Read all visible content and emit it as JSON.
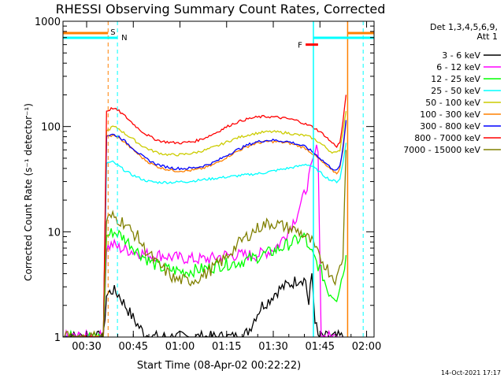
{
  "chart_data": {
    "type": "line",
    "title": "RHESSI Observing Summary Count Rates, Corrected",
    "xlabel": "Start Time (08-Apr-02 00:22:22)",
    "ylabel": "Corrected Count Rate (s⁻¹ detector⁻¹)",
    "yscale": "log",
    "ylim": [
      1,
      1000
    ],
    "xlim_minutes": [
      0,
      100
    ],
    "x_ticks": [
      {
        "t": 7.6,
        "label": "00:30"
      },
      {
        "t": 22.6,
        "label": "00:45"
      },
      {
        "t": 37.6,
        "label": "01:00"
      },
      {
        "t": 52.6,
        "label": "01:15"
      },
      {
        "t": 67.6,
        "label": "01:30"
      },
      {
        "t": 82.6,
        "label": "01:45"
      },
      {
        "t": 97.6,
        "label": "02:00"
      }
    ],
    "y_ticks": [
      {
        "v": 1,
        "label": "1"
      },
      {
        "v": 10,
        "label": "10"
      },
      {
        "v": 100,
        "label": "100"
      },
      {
        "v": 1000,
        "label": "1000"
      }
    ],
    "legend_title": [
      "Det 1,3,4,5,6,9,",
      "Att 1"
    ],
    "legend_placement": "right",
    "series": [
      {
        "name": "3 - 6 keV",
        "color": "#000000",
        "x": [
          0,
          13,
          14,
          16,
          18,
          20,
          22,
          24,
          26,
          28,
          30,
          32,
          34,
          36,
          38,
          40,
          42,
          44,
          46,
          48,
          50,
          52,
          54,
          56,
          58,
          60,
          62,
          64,
          66,
          68,
          70,
          72,
          74,
          76,
          78,
          79,
          80,
          81,
          82,
          83,
          84,
          85,
          85.5,
          86,
          88,
          89,
          90
        ],
        "y": [
          1,
          1,
          2.5,
          2.8,
          2.5,
          2,
          1.6,
          1.3,
          1.1,
          1,
          1,
          1,
          1,
          1,
          1,
          1,
          1,
          1,
          1,
          1,
          1,
          1,
          1,
          1,
          1,
          1.2,
          1.6,
          2,
          2.2,
          2.6,
          2.9,
          3.1,
          3.3,
          3.6,
          3.5,
          2,
          4,
          1.5,
          1,
          1,
          1,
          1,
          1,
          1,
          1,
          1,
          1
        ]
      },
      {
        "name": "6 - 12 keV",
        "color": "#ff00ff",
        "x": [
          0,
          13,
          14,
          16,
          18,
          20,
          22,
          24,
          26,
          28,
          30,
          32,
          34,
          36,
          38,
          40,
          42,
          44,
          46,
          48,
          50,
          52,
          54,
          56,
          58,
          60,
          62,
          64,
          66,
          68,
          70,
          72,
          73,
          74,
          75,
          76,
          77,
          78,
          79,
          80,
          81,
          82,
          83,
          84,
          85,
          86,
          87,
          88,
          89,
          90
        ],
        "y": [
          1,
          1,
          7,
          7.6,
          7,
          6.8,
          6.6,
          6.4,
          6.2,
          6,
          6,
          6,
          5.8,
          5.7,
          5.6,
          5.6,
          5.5,
          5.5,
          5.5,
          5.6,
          5.8,
          6,
          6,
          6,
          6,
          6,
          6,
          6.2,
          6.5,
          7,
          8,
          10,
          11,
          12.5,
          14,
          17,
          20,
          25,
          32,
          42,
          55,
          65,
          1,
          1,
          1,
          1,
          1,
          1,
          1,
          1
        ]
      },
      {
        "name": "12 - 25 keV",
        "color": "#00ff00",
        "x": [
          0,
          13,
          14,
          16,
          18,
          20,
          22,
          24,
          26,
          28,
          30,
          32,
          34,
          36,
          38,
          40,
          42,
          44,
          46,
          48,
          50,
          52,
          54,
          56,
          58,
          60,
          62,
          64,
          66,
          68,
          70,
          72,
          74,
          76,
          78,
          79,
          80,
          81,
          82,
          83,
          84,
          85,
          86,
          88,
          90,
          91
        ],
        "y": [
          1,
          1,
          9,
          10,
          9.5,
          8.5,
          7.5,
          6.5,
          5.8,
          5.2,
          4.8,
          4.5,
          4.4,
          4.3,
          4.2,
          4.2,
          4.3,
          4.4,
          4.5,
          4.6,
          4.8,
          4.9,
          5,
          5.1,
          5.3,
          5.5,
          5.7,
          6,
          6.3,
          6.6,
          7,
          7.5,
          8,
          8.5,
          9,
          6.5,
          6.2,
          5.5,
          4.8,
          4.2,
          3.5,
          2.8,
          2.6,
          2.4,
          4,
          6
        ]
      },
      {
        "name": "25 - 50 keV",
        "color": "#00ffff",
        "x": [
          0,
          13,
          14,
          16,
          18,
          20,
          22,
          24,
          26,
          28,
          30,
          32,
          34,
          36,
          38,
          40,
          42,
          44,
          46,
          48,
          50,
          52,
          54,
          56,
          58,
          60,
          62,
          64,
          66,
          68,
          70,
          72,
          74,
          76,
          78,
          80,
          82,
          84,
          86,
          88,
          89,
          90,
          91
        ],
        "y": [
          1,
          1,
          45,
          46,
          42,
          38,
          35,
          33,
          31,
          30,
          29.5,
          29.5,
          29.5,
          29.5,
          30,
          30,
          30.5,
          31,
          31.5,
          32,
          32.5,
          33,
          33.5,
          34,
          34.5,
          35,
          35.5,
          36,
          37,
          38,
          39,
          40,
          41,
          42,
          44,
          42,
          38,
          34,
          31,
          30,
          32,
          45,
          70
        ]
      },
      {
        "name": "50 - 100 keV",
        "color": "#cccc00",
        "x": [
          0,
          13,
          14,
          16,
          18,
          20,
          22,
          24,
          26,
          28,
          30,
          32,
          34,
          36,
          38,
          40,
          42,
          44,
          46,
          48,
          50,
          52,
          54,
          56,
          58,
          60,
          62,
          64,
          66,
          68,
          70,
          72,
          74,
          76,
          78,
          80,
          82,
          84,
          86,
          88,
          89,
          90,
          91
        ],
        "y": [
          1,
          1,
          90,
          100,
          95,
          85,
          78,
          70,
          64,
          60,
          57,
          55,
          54,
          54,
          54,
          55,
          56,
          58,
          60,
          63,
          66,
          70,
          74,
          78,
          81,
          84,
          86,
          88,
          89,
          89,
          88,
          87,
          85,
          83,
          82,
          78,
          72,
          65,
          58,
          56,
          60,
          90,
          140
        ]
      },
      {
        "name": "100 - 300 keV",
        "color": "#ff8000",
        "x": [
          0,
          13,
          14,
          16,
          18,
          20,
          22,
          24,
          26,
          28,
          30,
          32,
          34,
          36,
          38,
          40,
          42,
          44,
          46,
          48,
          50,
          52,
          54,
          56,
          58,
          60,
          62,
          64,
          66,
          68,
          70,
          72,
          74,
          76,
          78,
          80,
          82,
          84,
          86,
          88,
          89,
          90,
          91
        ],
        "y": [
          1,
          1,
          80,
          82,
          78,
          70,
          62,
          55,
          49,
          45,
          42,
          40,
          39,
          38,
          38,
          38,
          38.5,
          39.5,
          41,
          43,
          46,
          50,
          54,
          58,
          62,
          66,
          69,
          71,
          72,
          72,
          71,
          70,
          68,
          65,
          62,
          56,
          50,
          44,
          39,
          36,
          40,
          60,
          110
        ]
      },
      {
        "name": "300 - 800 keV",
        "color": "#0000ff",
        "x": [
          0,
          13,
          14,
          16,
          18,
          20,
          22,
          24,
          26,
          28,
          30,
          32,
          34,
          36,
          38,
          40,
          42,
          44,
          46,
          48,
          50,
          52,
          54,
          56,
          58,
          60,
          62,
          64,
          66,
          68,
          70,
          72,
          74,
          76,
          78,
          80,
          82,
          84,
          86,
          88,
          89,
          90,
          91
        ],
        "y": [
          1,
          1,
          82,
          84,
          80,
          72,
          64,
          57,
          51,
          47,
          44,
          42,
          41,
          40,
          40,
          40,
          40.5,
          41.5,
          43,
          45,
          48,
          52,
          56,
          60,
          64,
          68,
          71,
          73,
          74,
          74,
          73,
          72,
          70,
          67,
          64,
          58,
          52,
          46,
          41,
          38,
          42,
          62,
          115
        ]
      },
      {
        "name": "800 - 7000 keV",
        "color": "#ff0000",
        "x": [
          0,
          13,
          14,
          16,
          18,
          20,
          22,
          24,
          26,
          28,
          30,
          32,
          34,
          36,
          38,
          40,
          42,
          44,
          46,
          48,
          50,
          52,
          54,
          56,
          58,
          60,
          62,
          64,
          66,
          68,
          70,
          72,
          74,
          76,
          78,
          80,
          82,
          84,
          86,
          88,
          89,
          90,
          91
        ],
        "y": [
          1,
          1,
          140,
          150,
          140,
          125,
          110,
          97,
          87,
          80,
          75,
          72,
          71,
          70,
          70,
          71,
          72,
          75,
          79,
          84,
          90,
          97,
          104,
          110,
          115,
          119,
          122,
          124,
          124,
          123,
          121,
          119,
          116,
          112,
          105,
          100,
          92,
          83,
          72,
          65,
          70,
          110,
          200
        ]
      },
      {
        "name": "7000 - 15000 keV",
        "color": "#808000",
        "x": [
          0,
          13,
          14,
          16,
          18,
          20,
          22,
          24,
          26,
          28,
          30,
          32,
          34,
          36,
          38,
          40,
          42,
          44,
          46,
          48,
          50,
          52,
          54,
          56,
          58,
          60,
          62,
          64,
          66,
          68,
          70,
          72,
          74,
          76,
          78,
          80,
          82,
          84,
          86,
          88,
          90,
          91
        ],
        "y": [
          1,
          1,
          13,
          14,
          13,
          12,
          10,
          9,
          7,
          6,
          5,
          4.5,
          4,
          3.5,
          3.5,
          3.4,
          3.5,
          3.7,
          4,
          4.5,
          5,
          5.5,
          6.5,
          7.5,
          8.5,
          9.5,
          10.5,
          11.5,
          12,
          12,
          11.5,
          11,
          10.5,
          10,
          9,
          8,
          6,
          5,
          4,
          3.5,
          6,
          60
        ]
      }
    ],
    "annotations": {
      "top_bar_color": "#ff8000",
      "attenuator_color": "#00ffff",
      "s_marker": {
        "label": "S",
        "color": "#ff8000",
        "t": 14.5
      },
      "n_marker": {
        "label": "N",
        "color": "#00ffff",
        "t": 17.5
      },
      "f_marker": {
        "label": "F",
        "color": "#ff0000",
        "t1": 78,
        "t2": 82,
        "y": 600
      },
      "cyan_lines": [
        17.5,
        80.5,
        96.5
      ],
      "orange_lines": [
        14.5,
        91.5
      ],
      "solid_cyan_lines": [
        80.5
      ],
      "solid_orange_lines": [
        91.5
      ]
    }
  },
  "footer": {
    "date": "14-Oct-2021 17:17"
  }
}
